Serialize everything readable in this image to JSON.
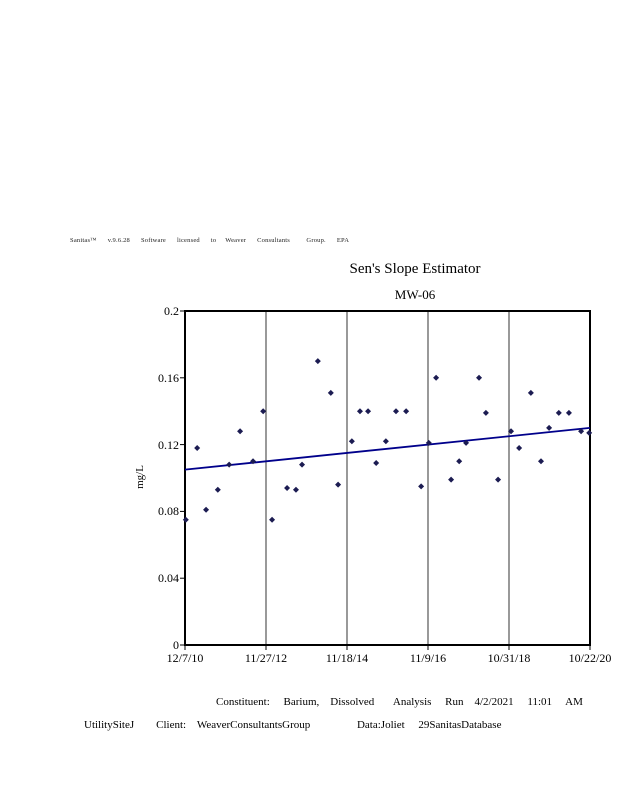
{
  "watermark": {
    "text": "Sanitas™      v.9.6.28      Software      licensed      to     Weaver      Consultants         Group.      EPA"
  },
  "chart_data": {
    "type": "scatter",
    "title": "Sen's Slope Estimator",
    "subtitle": "MW-06",
    "ylabel": "mg/L",
    "ylim": [
      0,
      0.2
    ],
    "yticks": [
      0,
      0.04,
      0.08,
      0.12,
      0.16,
      0.2
    ],
    "ytick_labels": [
      "0",
      "0.04",
      "0.08",
      "0.12",
      "0.16",
      "0.2"
    ],
    "xticks": [
      "12/7/10",
      "11/27/12",
      "11/18/14",
      "11/9/16",
      "10/31/18",
      "10/22/20"
    ],
    "grid": "vertical-only",
    "legend": "none",
    "point_color": "#1c1c52",
    "line_color": "#00008b",
    "trend_line": {
      "x": [
        0,
        1
      ],
      "y": [
        0.105,
        0.13
      ],
      "label": "Sen's slope trend line"
    },
    "points": [
      [
        0.002,
        0.075
      ],
      [
        0.03,
        0.118
      ],
      [
        0.052,
        0.081
      ],
      [
        0.081,
        0.093
      ],
      [
        0.109,
        0.108
      ],
      [
        0.136,
        0.128
      ],
      [
        0.168,
        0.11
      ],
      [
        0.193,
        0.14
      ],
      [
        0.215,
        0.075
      ],
      [
        0.252,
        0.094
      ],
      [
        0.274,
        0.093
      ],
      [
        0.289,
        0.108
      ],
      [
        0.328,
        0.17
      ],
      [
        0.36,
        0.151
      ],
      [
        0.378,
        0.096
      ],
      [
        0.412,
        0.122
      ],
      [
        0.432,
        0.14
      ],
      [
        0.452,
        0.14
      ],
      [
        0.472,
        0.109
      ],
      [
        0.496,
        0.122
      ],
      [
        0.521,
        0.14
      ],
      [
        0.546,
        0.14
      ],
      [
        0.583,
        0.095
      ],
      [
        0.602,
        0.121
      ],
      [
        0.62,
        0.16
      ],
      [
        0.657,
        0.099
      ],
      [
        0.677,
        0.11
      ],
      [
        0.694,
        0.121
      ],
      [
        0.726,
        0.16
      ],
      [
        0.743,
        0.139
      ],
      [
        0.773,
        0.099
      ],
      [
        0.805,
        0.128
      ],
      [
        0.825,
        0.118
      ],
      [
        0.854,
        0.151
      ],
      [
        0.879,
        0.11
      ],
      [
        0.899,
        0.13
      ],
      [
        0.923,
        0.139
      ],
      [
        0.948,
        0.139
      ],
      [
        0.978,
        0.128
      ],
      [
        0.998,
        0.127
      ]
    ]
  },
  "footer": {
    "line1": "Constituent:     Barium,    Dissolved       Analysis     Run    4/2/2021     11:01     AM",
    "line2": "UtilitySiteJ        Client:    WeaverConsultantsGroup                 Data:Joliet     29SanitasDatabase"
  }
}
